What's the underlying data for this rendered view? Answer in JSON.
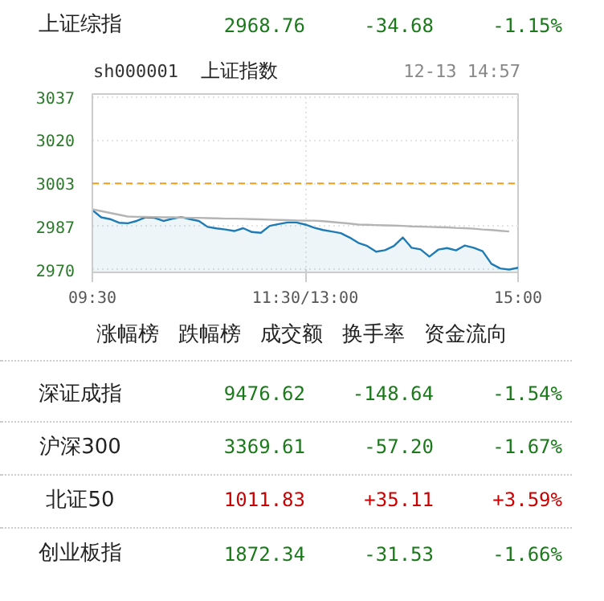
{
  "chart_data": {
    "type": "line",
    "title": "上证指数",
    "subtitle": "sh000001",
    "categories": [
      "09:30",
      null,
      null,
      null,
      null,
      null,
      null,
      null,
      null,
      null,
      null,
      null,
      null,
      null,
      null,
      null,
      null,
      null,
      null,
      null,
      null,
      null,
      null,
      null,
      "11:30/13:00",
      null,
      null,
      null,
      null,
      null,
      null,
      null,
      null,
      null,
      null,
      null,
      null,
      null,
      null,
      null,
      null,
      null,
      null,
      null,
      null,
      null,
      null,
      null,
      "15:00"
    ],
    "series": [
      {
        "type": "area",
        "color": "#1f7bb6",
        "values": [
          2993.1,
          2990.3,
          2989.6,
          2988.2,
          2988.0,
          2988.9,
          2990.3,
          2990.1,
          2988.9,
          2989.7,
          2990.4,
          2989.6,
          2988.9,
          2986.6,
          2986.0,
          2985.6,
          2985.0,
          2986.1,
          2984.6,
          2984.3,
          2987.0,
          2987.7,
          2988.3,
          2988.3,
          2987.5,
          2986.3,
          2985.4,
          2984.8,
          2984.2,
          2982.5,
          2980.4,
          2979.2,
          2977.0,
          2977.6,
          2979.2,
          2982.5,
          2978.5,
          2977.9,
          2975.1,
          2977.8,
          2978.4,
          2977.5,
          2979.4,
          2978.5,
          2977.2,
          2972.3,
          2970.5,
          2970.1,
          2970.8
        ]
      },
      {
        "color": "#b4b4b4",
        "values": [
          2993.4,
          2992.7,
          2992.0,
          2991.3,
          2990.6,
          2990.5,
          2990.5,
          2990.4,
          2990.3,
          2990.3,
          2990.2,
          2990.1,
          2990.1,
          2990.0,
          2989.9,
          2989.8,
          2989.8,
          2989.7,
          2989.6,
          2989.5,
          2989.4,
          2989.3,
          2989.2,
          2989.1,
          2989.0,
          2989.0,
          2988.8,
          2988.5,
          2988.2,
          2987.9,
          2987.5,
          2987.4,
          2987.3,
          2987.2,
          2987.1,
          2987.0,
          2986.8,
          2986.7,
          2986.6,
          2986.5,
          2986.4,
          2986.2,
          2986.1,
          2985.9,
          2985.6,
          2985.4,
          2985.1,
          2984.8,
          null
        ]
      }
    ],
    "ylim": [
      2969,
      3038
    ],
    "yticks": [
      {
        "value": 2970,
        "label": "2970"
      },
      {
        "value": 2986.72,
        "label": "2987"
      },
      {
        "value": 3003.44,
        "label": "3003"
      },
      {
        "value": 3020.16,
        "label": "3020"
      },
      {
        "value": 3036.88,
        "label": "3037"
      }
    ],
    "ref_lines": [
      {
        "axis": "y",
        "value": 3003.44,
        "color": "#f0a020",
        "line_style": "dashed"
      }
    ],
    "grid": true,
    "annotations": [
      "上证综指",
      "2968.76",
      "-34.68",
      "-1.15%",
      "12-13 14:57",
      "涨幅榜",
      "跌幅榜",
      "成交额",
      "换手率",
      "资金流向",
      "深证成指",
      "9476.62",
      "-148.64",
      "-1.54%",
      "沪深300",
      "3369.61",
      "-57.20",
      "-1.67%",
      "北证50",
      "1011.83",
      "+35.11",
      "+3.59%",
      "创业板指",
      "1872.34",
      "-31.53",
      "-1.66%"
    ]
  }
}
